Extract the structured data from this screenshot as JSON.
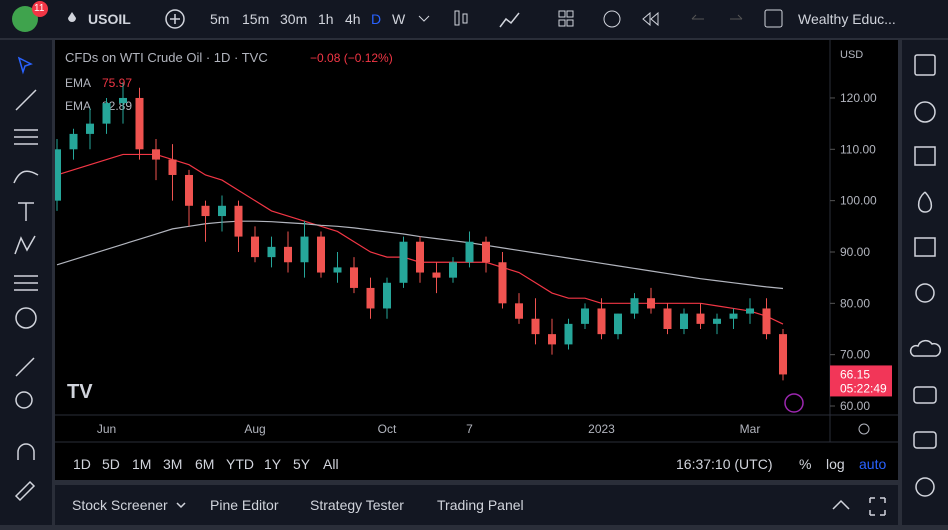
{
  "toolbar": {
    "badge": "11",
    "symbol": "USOIL",
    "intervals": [
      "5m",
      "15m",
      "30m",
      "1h",
      "4h",
      "D",
      "W"
    ],
    "account": "Wealthy Educ..."
  },
  "chart_data": {
    "type": "candlestick",
    "title": "CFDs on WTI Crude Oil · 1D · TVC",
    "change": "−0.08 (−0.12%)",
    "currency": "USD",
    "countdown": "05:22:49",
    "categories": [
      null,
      null,
      null,
      "Jun",
      null,
      null,
      null,
      null,
      null,
      null,
      null,
      null,
      "Aug",
      null,
      null,
      null,
      null,
      null,
      null,
      null,
      "Oct",
      null,
      null,
      null,
      null,
      "7",
      null,
      null,
      null,
      null,
      null,
      null,
      null,
      "2023",
      null,
      null,
      null,
      null,
      null,
      null,
      null,
      null,
      "Mar",
      null,
      null
    ],
    "open": [
      100,
      110,
      113,
      115,
      119,
      120,
      110,
      108,
      105,
      99,
      97,
      99,
      93,
      89,
      91,
      88,
      93,
      86,
      87,
      83,
      79,
      84,
      92,
      86,
      85,
      88,
      92,
      88,
      80,
      77,
      74,
      72,
      76,
      79,
      74,
      78,
      81,
      79,
      75,
      78,
      76,
      77,
      78,
      79,
      74
    ],
    "high": [
      112,
      114,
      118,
      120,
      123,
      122,
      112,
      111,
      106,
      100,
      101,
      100,
      95,
      93,
      94,
      96,
      94,
      90,
      89,
      85,
      85,
      93,
      93,
      88,
      89,
      94,
      93,
      90,
      82,
      81,
      77,
      77,
      80,
      81,
      78,
      82,
      83,
      80,
      79,
      80,
      78,
      79,
      81,
      81,
      75
    ],
    "low": [
      98,
      108,
      110,
      113,
      115,
      108,
      104,
      100,
      95,
      92,
      94,
      90,
      88,
      87,
      86,
      85,
      85,
      84,
      82,
      77,
      77,
      83,
      84,
      82,
      84,
      87,
      86,
      79,
      76,
      72,
      70,
      71,
      75,
      73,
      73,
      77,
      78,
      74,
      74,
      75,
      74,
      75,
      76,
      73,
      65
    ],
    "close": [
      110,
      113,
      115,
      119,
      120,
      110,
      108,
      105,
      99,
      97,
      99,
      93,
      89,
      91,
      88,
      93,
      86,
      87,
      83,
      79,
      84,
      92,
      86,
      85,
      88,
      92,
      88,
      80,
      77,
      74,
      72,
      76,
      79,
      74,
      78,
      81,
      79,
      75,
      78,
      76,
      77,
      78,
      79,
      74,
      66.15
    ],
    "up_color": "#26a69a",
    "down_color": "#ef5350",
    "series": [
      {
        "name": "EMA",
        "color": "#f23645",
        "values": [
          105,
          106,
          107,
          108,
          109,
          109,
          109,
          108,
          107,
          105,
          104,
          102,
          100,
          98,
          97,
          96,
          95,
          94,
          92,
          90,
          89,
          89,
          88,
          88,
          88,
          88,
          88,
          87,
          86,
          84,
          82,
          81,
          81,
          80,
          80,
          80,
          80,
          80,
          80,
          80,
          79.5,
          79,
          78.5,
          77.5,
          75.97
        ]
      },
      {
        "name": "EMA",
        "color": "#b2b5be",
        "values": [
          87.5,
          88.5,
          89.5,
          90.5,
          91.5,
          92.5,
          93.5,
          94.5,
          95,
          95.5,
          95.8,
          96,
          96,
          95.9,
          95.7,
          95.5,
          95.2,
          95,
          94.7,
          94.3,
          93.9,
          93.5,
          93,
          92.6,
          92.2,
          91.8,
          91.3,
          90.8,
          90.3,
          89.8,
          89.3,
          88.8,
          88.3,
          87.8,
          87.3,
          86.8,
          86.3,
          85.8,
          85.3,
          84.8,
          84.4,
          84,
          83.6,
          83.2,
          82.89
        ]
      }
    ],
    "ylim": [
      58.25,
      130.9
    ],
    "yticks": [
      {
        "value": 60,
        "label": "60.00"
      },
      {
        "value": 70,
        "label": "70.00"
      },
      {
        "value": 80,
        "label": "80.00"
      },
      {
        "value": 90,
        "label": "90.00"
      },
      {
        "value": 100,
        "label": "100.00"
      },
      {
        "value": 110,
        "label": "110.00"
      },
      {
        "value": 120,
        "label": "120.00"
      }
    ]
  },
  "range_bar": {
    "ranges": [
      "1D",
      "5D",
      "1M",
      "3M",
      "6M",
      "YTD",
      "1Y",
      "5Y",
      "All"
    ],
    "time": "16:37:10 (UTC)",
    "scale": [
      "%",
      "log",
      "auto"
    ]
  },
  "bottom_tabs": [
    "Stock Screener",
    "Pine Editor",
    "Strategy Tester",
    "Trading Panel"
  ]
}
